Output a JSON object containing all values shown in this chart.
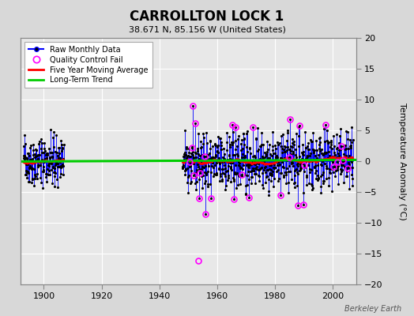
{
  "title": "CARROLLTON LOCK 1",
  "subtitle": "38.671 N, 85.156 W (United States)",
  "ylabel_right": "Temperature Anomaly (°C)",
  "watermark": "Berkeley Earth",
  "xlim": [
    1892,
    2008
  ],
  "ylim": [
    -20,
    20
  ],
  "yticks": [
    -20,
    -15,
    -10,
    -5,
    0,
    5,
    10,
    15,
    20
  ],
  "xticks": [
    1900,
    1920,
    1940,
    1960,
    1980,
    2000
  ],
  "fig_bg_color": "#d8d8d8",
  "plot_bg_color": "#e8e8e8",
  "grid_color": "#ffffff",
  "raw_color": "#0000ff",
  "dot_color": "#000000",
  "qc_color": "#ff00ff",
  "ma_color": "#ff0000",
  "trend_color": "#00cc00",
  "raw_lw": 0.6,
  "ma_lw": 1.8,
  "trend_lw": 2.2,
  "seed": 42,
  "early_start_year": 1893,
  "early_end_year": 1906,
  "late_start_year": 1948,
  "late_end_year": 2006,
  "early_std": 1.8,
  "late_std": 2.2,
  "outlier_threshold": 5.5,
  "moving_avg_window": 60
}
